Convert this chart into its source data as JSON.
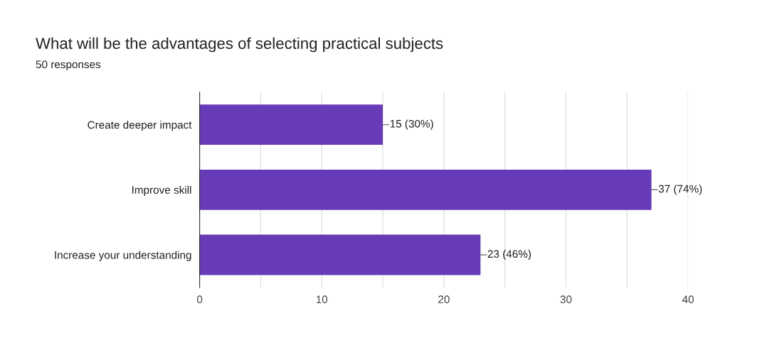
{
  "chart_data": {
    "type": "bar",
    "orientation": "horizontal",
    "title": "What will be the advantages of selecting practical subjects",
    "subtitle": "50 responses",
    "categories": [
      "Create deeper impact",
      "Improve skill",
      "Increase your understanding"
    ],
    "values": [
      15,
      37,
      23
    ],
    "color": "#673ab7",
    "value_labels": [
      "15 (30%)",
      "37 (74%)",
      "23 (46%)"
    ],
    "xlim": [
      0,
      40
    ],
    "xticks": [
      0,
      {
        "value": 5,
        "label": null
      },
      10,
      {
        "value": 15,
        "label": null
      },
      20,
      {
        "value": 25,
        "label": null
      },
      30,
      {
        "value": 35,
        "label": null
      },
      40
    ],
    "grid": "x",
    "legend": false
  }
}
